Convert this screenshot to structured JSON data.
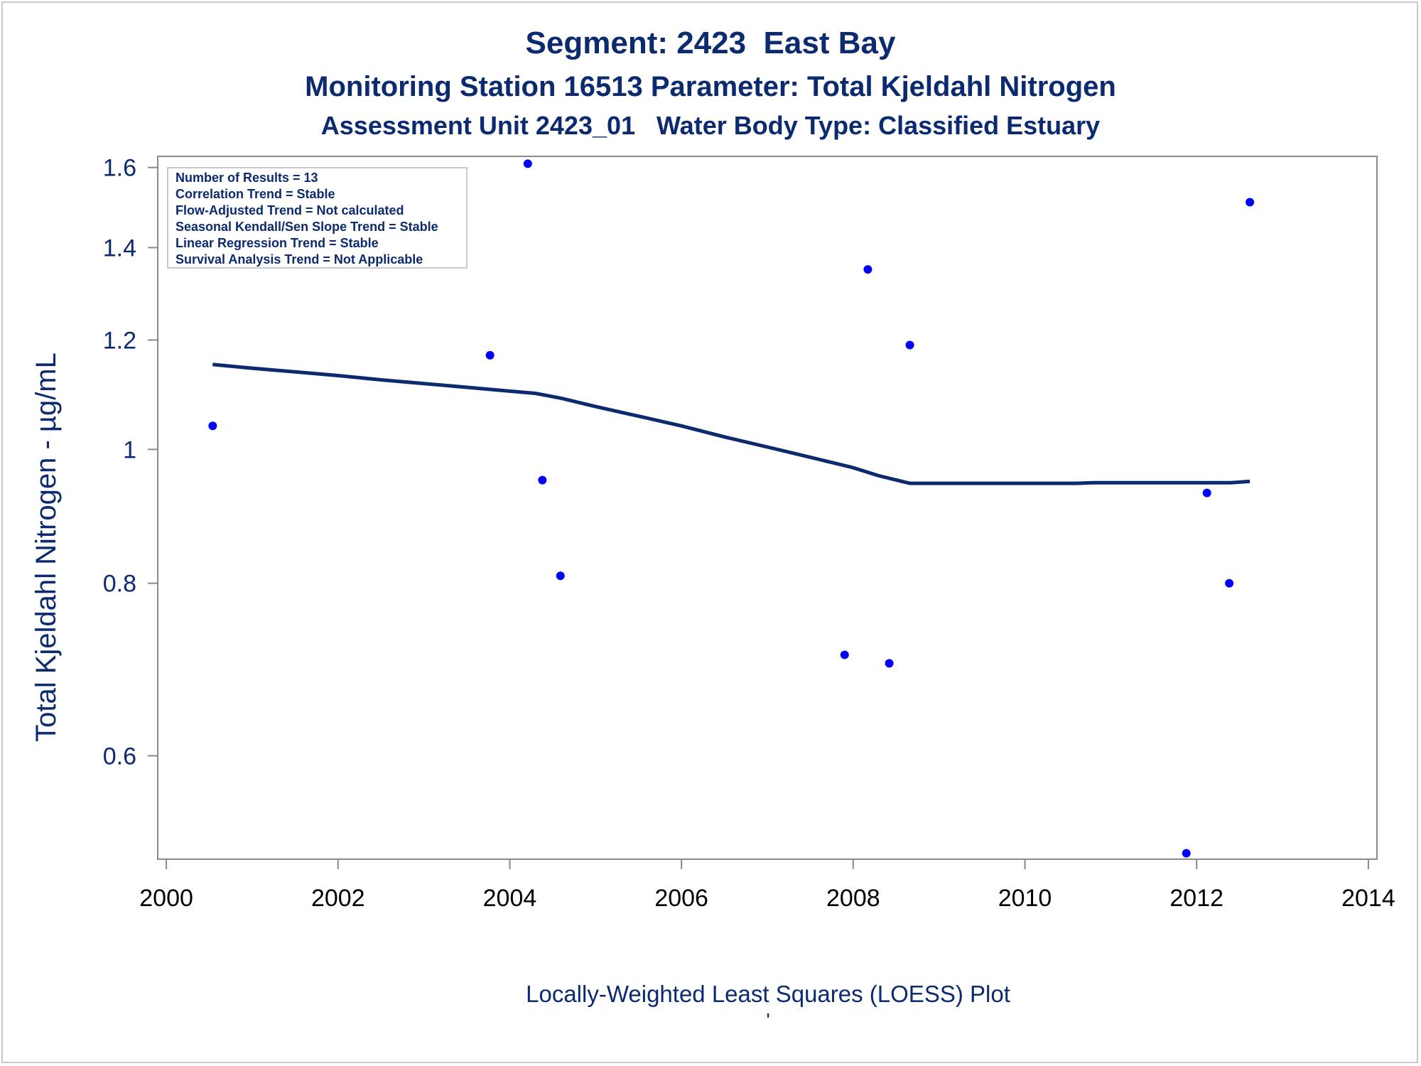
{
  "chart_data": {
    "type": "scatter",
    "title": "Segment: 2423  East Bay",
    "subtitle_1": "Monitoring Station 16513 Parameter: Total Kjeldahl Nitrogen",
    "subtitle_2": "Assessment Unit 2423_01   Water Body Type: Classified Estuary",
    "xlabel": "",
    "ylabel": "Total Kjeldahl Nitrogen -  µg/mL",
    "footnote": "Locally-Weighted Least Squares (LOESS) Plot",
    "footnote_mark": "'",
    "x_scale": "linear",
    "y_scale": "log",
    "xlim": [
      1999.9,
      2014.1
    ],
    "ylim": [
      0.505,
      1.63
    ],
    "x_ticks": [
      2000,
      2002,
      2004,
      2006,
      2008,
      2010,
      2012,
      2014
    ],
    "y_ticks": [
      0.6,
      0.8,
      1.0,
      1.2,
      1.4,
      1.6
    ],
    "y_tick_labels": [
      "0.6",
      "0.8",
      "1",
      "1.2",
      "1.4",
      "1.6"
    ],
    "grid": false,
    "stats_box_position": "top-left",
    "stats_box": [
      "Number of Results = 13",
      "Correlation Trend = Stable",
      "Flow-Adjusted Trend = Not calculated",
      "Seasonal Kendall/Sen Slope Trend = Stable",
      "Linear Regression Trend = Stable",
      "Survival Analysis Trend = Not Applicable"
    ],
    "series": [
      {
        "kind": "points",
        "color": "#0000ff",
        "points": [
          [
            2000.54,
            1.04
          ],
          [
            2003.77,
            1.17
          ],
          [
            2004.21,
            1.61
          ],
          [
            2004.38,
            0.95
          ],
          [
            2004.59,
            0.81
          ],
          [
            2007.9,
            0.71
          ],
          [
            2008.17,
            1.35
          ],
          [
            2008.42,
            0.7
          ],
          [
            2008.66,
            1.19
          ],
          [
            2011.88,
            0.51
          ],
          [
            2012.12,
            0.93
          ],
          [
            2012.38,
            0.8
          ],
          [
            2012.62,
            1.51
          ]
        ]
      },
      {
        "kind": "loess",
        "color": "#0b2a6f",
        "points": [
          [
            2000.54,
            1.152
          ],
          [
            2001.0,
            1.145
          ],
          [
            2001.5,
            1.138
          ],
          [
            2002.0,
            1.131
          ],
          [
            2002.5,
            1.123
          ],
          [
            2003.0,
            1.116
          ],
          [
            2003.5,
            1.109
          ],
          [
            2004.0,
            1.102
          ],
          [
            2004.3,
            1.098
          ],
          [
            2004.6,
            1.089
          ],
          [
            2005.0,
            1.074
          ],
          [
            2005.5,
            1.057
          ],
          [
            2006.0,
            1.04
          ],
          [
            2006.5,
            1.021
          ],
          [
            2007.0,
            1.004
          ],
          [
            2007.5,
            0.987
          ],
          [
            2008.0,
            0.97
          ],
          [
            2008.3,
            0.957
          ],
          [
            2008.66,
            0.945
          ],
          [
            2009.0,
            0.945
          ],
          [
            2009.5,
            0.945
          ],
          [
            2010.0,
            0.945
          ],
          [
            2010.6,
            0.945
          ],
          [
            2010.8,
            0.946
          ],
          [
            2011.5,
            0.946
          ],
          [
            2012.0,
            0.946
          ],
          [
            2012.4,
            0.946
          ],
          [
            2012.62,
            0.948
          ]
        ]
      }
    ]
  }
}
